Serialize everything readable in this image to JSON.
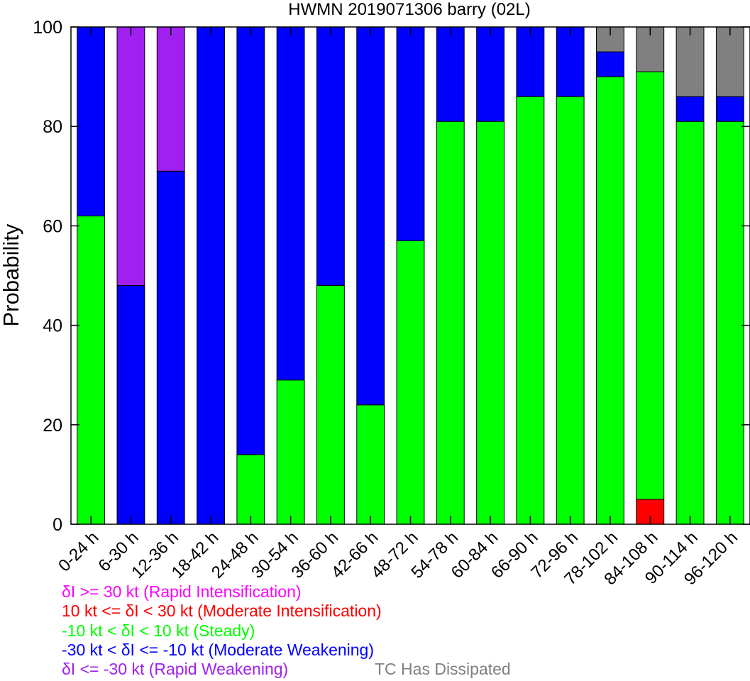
{
  "chart_data": {
    "type": "bar",
    "stacked": true,
    "title": "HWMN 2019071306 barry (02L)",
    "xlabel": "",
    "ylabel": "Probability",
    "ylim": [
      0,
      100
    ],
    "yticks": [
      0,
      20,
      40,
      60,
      80,
      100
    ],
    "grid": false,
    "categories": [
      "0-24 h",
      "6-30 h",
      "12-36 h",
      "18-42 h",
      "24-48 h",
      "30-54 h",
      "36-60 h",
      "42-66 h",
      "48-72 h",
      "54-78 h",
      "60-84 h",
      "66-90 h",
      "72-96 h",
      "78-102 h",
      "84-108 h",
      "90-114 h",
      "96-120 h"
    ],
    "series": [
      {
        "key": "ri",
        "color": "#ff00ff",
        "values": [
          0,
          0,
          0,
          0,
          0,
          0,
          0,
          0,
          0,
          0,
          0,
          0,
          0,
          0,
          0,
          0,
          0
        ]
      },
      {
        "key": "mi",
        "color": "#ff0000",
        "values": [
          0,
          0,
          0,
          0,
          0,
          0,
          0,
          0,
          0,
          0,
          0,
          0,
          0,
          0,
          5,
          0,
          0
        ]
      },
      {
        "key": "steady",
        "color": "#00ff00",
        "values": [
          62,
          0,
          0,
          0,
          14,
          29,
          48,
          24,
          57,
          81,
          81,
          86,
          86,
          90,
          86,
          81,
          81
        ]
      },
      {
        "key": "mw",
        "color": "#0000ff",
        "values": [
          38,
          48,
          71,
          100,
          86,
          71,
          52,
          76,
          43,
          19,
          19,
          14,
          14,
          5,
          0,
          5,
          5
        ]
      },
      {
        "key": "rw",
        "color": "#a020f0",
        "values": [
          0,
          52,
          29,
          0,
          0,
          0,
          0,
          0,
          0,
          0,
          0,
          0,
          0,
          0,
          0,
          0,
          0
        ]
      },
      {
        "key": "dissipated",
        "color": "#808080",
        "values": [
          0,
          0,
          0,
          0,
          0,
          0,
          0,
          0,
          0,
          0,
          0,
          0,
          0,
          5,
          9,
          14,
          14
        ]
      }
    ]
  },
  "legend": {
    "ri": {
      "text": "δI >= 30 kt (Rapid Intensification)",
      "color": "#ff00ff"
    },
    "mi": {
      "text": "10 kt <= δI < 30 kt (Moderate Intensification)",
      "color": "#ff0000"
    },
    "steady": {
      "text": "-10 kt < δI < 10 kt (Steady)",
      "color": "#00ff00"
    },
    "mw": {
      "text": "-30 kt < δI <= -10 kt (Moderate Weakening)",
      "color": "#0000ff"
    },
    "rw": {
      "text": "δI <= -30 kt (Rapid Weakening)",
      "color": "#a020f0"
    },
    "dissipated": {
      "text": "TC Has Dissipated",
      "color": "#808080"
    }
  }
}
